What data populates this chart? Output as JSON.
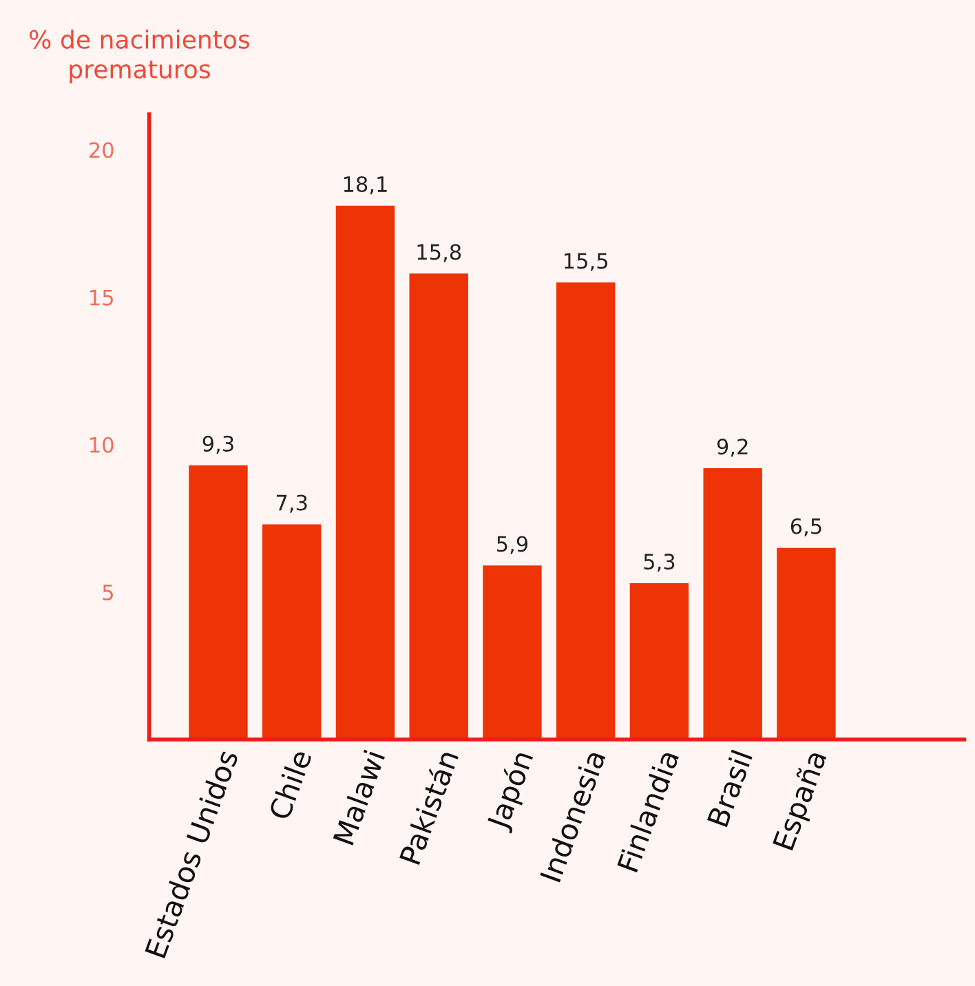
{
  "chart_data": {
    "type": "bar",
    "ylabel": "% de nacimientos\nprematuros",
    "categories": [
      "Estados Unidos",
      "Chile",
      "Malawi",
      "Pakistán",
      "Japón",
      "Indonesia",
      "Finlandia",
      "Brasil",
      "España"
    ],
    "values": [
      9.3,
      7.3,
      18.1,
      15.8,
      5.9,
      15.5,
      5.3,
      9.2,
      6.5
    ],
    "value_labels": [
      "9,3",
      "7,3",
      "18,1",
      "15,8",
      "5,9",
      "15,5",
      "5,3",
      "9,2",
      "6,5"
    ],
    "color": "#ee3307",
    "ylim": [
      0,
      21.2
    ],
    "yticks": [
      5,
      10,
      15,
      20
    ],
    "grid": false
  }
}
